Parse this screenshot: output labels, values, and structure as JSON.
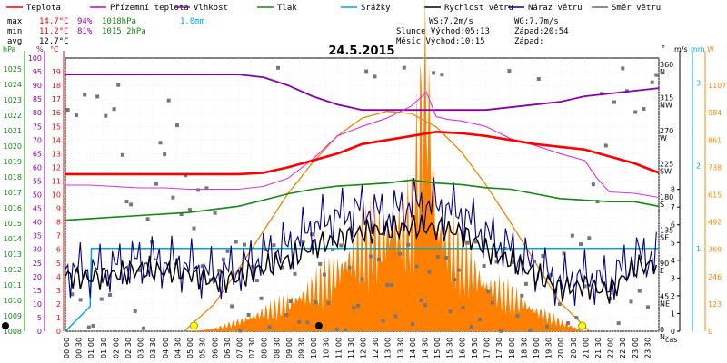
{
  "chart_data": {
    "type": "line",
    "title": "24.5.2015",
    "legend": [
      {
        "name": "Teplota",
        "color": "#ff0000"
      },
      {
        "name": "Přízemní teplota",
        "color": "#cc00cc"
      },
      {
        "name": "Vlhkost",
        "color": "#8800aa"
      },
      {
        "name": "Tlak",
        "color": "#118811"
      },
      {
        "name": "Srážky",
        "color": "#00aacc"
      },
      {
        "name": "Rychlost větru",
        "color": "#000000"
      },
      {
        "name": "Náraz větru",
        "color": "#000088"
      },
      {
        "name": "Směr větru",
        "color": "#666666"
      }
    ],
    "stats": {
      "max_label": "max",
      "max_t": "14.7°C",
      "max_h": "94%",
      "max_p": "1018hPa",
      "max_rain": "1.0mm",
      "min_label": "min",
      "min_t": "11.2°C",
      "min_h": "81%",
      "min_p": "1015.2hPa",
      "avg_label": "avg",
      "avg_t": "12.7°C",
      "ws": "WS:7.2m/s",
      "wg": "WG:7.7m/s",
      "sun_rise": "Slunce Východ:05:13",
      "sun_set": "Západ:20:54",
      "moon_rise": "Měsíc  Východ:10:15",
      "moon_set": "Západ:"
    },
    "axes": {
      "hpa_unit": "hPa",
      "pct_unit": "%",
      "c_unit": "°C",
      "dir_unit": "°",
      "ms_unit": "m/s",
      "mm_unit": "mm",
      "w_unit": "W",
      "x_label": "čas",
      "hpa_ticks": [
        "1025",
        "1024",
        "1023",
        "1022",
        "1021",
        "1020",
        "1019",
        "1018",
        "1017",
        "1016",
        "1015",
        "1014",
        "1013",
        "1012",
        "1011",
        "1010",
        "1009",
        "1008"
      ],
      "pct_ticks": [
        "100",
        "95",
        "90",
        "85",
        "80",
        "75",
        "70",
        "65",
        "60",
        "55",
        "50",
        "45",
        "40",
        "35",
        "30",
        "25",
        "20",
        "15",
        "10",
        "5",
        "0"
      ],
      "c_ticks": [
        "19",
        "18",
        "17",
        "16",
        "15",
        "14",
        "13",
        "12",
        "11",
        "10",
        "9",
        "8",
        "7",
        "6",
        "5",
        "4",
        "3",
        "2",
        "1",
        "0"
      ],
      "dir_ticks": [
        {
          "deg": "360",
          "lab": "N",
          "v": 360
        },
        {
          "deg": "315",
          "lab": "NW",
          "v": 315
        },
        {
          "deg": "270",
          "lab": "W",
          "v": 270
        },
        {
          "deg": "225",
          "lab": "SW",
          "v": 225
        },
        {
          "deg": "180",
          "lab": "S",
          "v": 180
        },
        {
          "deg": "135",
          "lab": "SE",
          "v": 135
        },
        {
          "deg": "90",
          "lab": "E",
          "v": 90
        },
        {
          "deg": "45",
          "lab": "NE",
          "v": 45
        },
        {
          "deg": "0",
          "lab": "N",
          "v": 0
        }
      ],
      "ms_ticks": [
        "8",
        "7",
        "6",
        "5",
        "4",
        "3",
        "2",
        "1",
        "0"
      ],
      "mm_ticks": [
        "3",
        "2",
        "1"
      ],
      "w_ticks": [
        "1107",
        "984",
        "861",
        "738",
        "615",
        "492",
        "369",
        "246",
        "123",
        "0"
      ],
      "time_ticks": [
        "00:00",
        "00:30",
        "01:00",
        "01:30",
        "02:00",
        "02:30",
        "03:00",
        "03:30",
        "04:00",
        "04:30",
        "05:00",
        "05:30",
        "06:00",
        "06:30",
        "07:00",
        "07:30",
        "08:00",
        "08:30",
        "09:00",
        "09:30",
        "10:00",
        "10:30",
        "11:00",
        "11:30",
        "12:00",
        "12:30",
        "13:00",
        "13:30",
        "14:00",
        "14:30",
        "15:00",
        "15:30",
        "16:00",
        "16:30",
        "17:00",
        "17:30",
        "18:00",
        "18:30",
        "19:00",
        "19:30",
        "20:00",
        "20:30",
        "21:00",
        "21:30",
        "22:00",
        "22:30",
        "23:00",
        "23:30"
      ]
    },
    "series": {
      "temperature": {
        "x": [
          0,
          1,
          2,
          3,
          4,
          5,
          6,
          7,
          8,
          9,
          10,
          11,
          12,
          13,
          14,
          15,
          16,
          17,
          18,
          19,
          20,
          21,
          22,
          23,
          24
        ],
        "y": [
          11.5,
          11.5,
          11.5,
          11.5,
          11.5,
          11.5,
          11.5,
          11.5,
          11.6,
          12.0,
          12.5,
          13.0,
          13.7,
          14.0,
          14.3,
          14.6,
          14.5,
          14.3,
          14.0,
          13.7,
          13.5,
          13.3,
          12.8,
          12.3,
          11.6
        ]
      },
      "ground_temp": {
        "x": [
          0,
          1,
          2,
          3,
          4,
          5,
          6,
          7,
          8,
          9,
          10,
          11,
          12,
          13,
          14,
          14.6,
          15,
          15.5,
          16,
          17,
          18,
          19,
          20,
          21,
          21.5,
          22,
          23,
          24
        ],
        "y": [
          10.7,
          10.7,
          10.6,
          10.5,
          10.5,
          10.4,
          10.4,
          10.4,
          10.6,
          11.2,
          12.6,
          14.3,
          15.0,
          15.6,
          16.5,
          17.5,
          15.7,
          15.5,
          15.4,
          15.0,
          14.1,
          13.6,
          13.0,
          12.5,
          11.2,
          10.2,
          10.1,
          9.8
        ]
      },
      "humidity": {
        "x": [
          0,
          1,
          2,
          3,
          4,
          5,
          6,
          7,
          8,
          9,
          10,
          11,
          12,
          13,
          14,
          15,
          16,
          17,
          18,
          19,
          20,
          21,
          22,
          23,
          24
        ],
        "y": [
          94,
          94,
          94,
          94,
          94,
          94,
          94,
          94,
          93,
          90,
          86,
          83,
          81,
          81,
          81,
          81,
          81,
          81,
          82,
          83,
          84,
          86,
          87,
          88,
          89
        ]
      },
      "pressure": {
        "x": [
          0,
          1,
          2,
          3,
          4,
          5,
          6,
          7,
          8,
          9,
          10,
          11,
          12,
          13,
          14,
          15,
          16,
          17,
          18,
          19,
          20,
          21,
          22,
          23,
          24
        ],
        "y": [
          1015.2,
          1015.3,
          1015.4,
          1015.5,
          1015.6,
          1015.7,
          1015.9,
          1016.1,
          1016.5,
          1016.9,
          1017.2,
          1017.4,
          1017.5,
          1017.6,
          1017.8,
          1017.6,
          1017.5,
          1017.3,
          1017.2,
          1016.9,
          1016.6,
          1016.5,
          1016.4,
          1016.4,
          1016.1
        ]
      },
      "rain_total_mm": {
        "x": [
          0,
          1.0,
          1.05,
          24
        ],
        "y": [
          0,
          0.3,
          1.0,
          1.0
        ]
      },
      "wind_speed_ms": {
        "x": [
          0,
          1,
          2,
          3,
          4,
          5,
          6,
          7,
          8,
          9,
          10,
          11,
          12,
          13,
          14,
          15,
          16,
          17,
          18,
          19,
          20,
          21,
          22,
          23,
          24
        ],
        "y": [
          3.1,
          3.0,
          3.2,
          3.5,
          3.4,
          3.3,
          2.8,
          3.0,
          3.6,
          4.0,
          4.8,
          5.2,
          5.6,
          5.7,
          5.9,
          5.8,
          5.6,
          4.6,
          4.0,
          3.2,
          2.4,
          2.6,
          2.2,
          3.6,
          3.8
        ]
      },
      "wind_gust_ms": {
        "x": [
          0,
          1,
          2,
          3,
          4,
          5,
          6,
          7,
          8,
          9,
          10,
          11,
          12,
          13,
          14,
          15,
          16,
          17,
          18,
          19,
          20,
          21,
          22,
          23,
          24
        ],
        "y": [
          3.5,
          3.4,
          3.6,
          4.0,
          3.9,
          3.7,
          3.2,
          3.5,
          4.3,
          4.8,
          5.9,
          6.5,
          6.9,
          6.5,
          7.2,
          7.1,
          6.7,
          5.4,
          4.6,
          3.6,
          2.8,
          3.1,
          2.8,
          4.2,
          4.3
        ]
      },
      "solar_W": {
        "x": [
          5,
          6,
          7,
          8,
          9,
          10,
          11,
          12,
          13,
          14,
          14.6,
          15,
          16,
          17,
          18,
          19,
          20,
          21
        ],
        "y": [
          0,
          10,
          40,
          80,
          120,
          180,
          260,
          380,
          420,
          480,
          1107,
          450,
          320,
          200,
          150,
          90,
          40,
          0
        ]
      },
      "clear_sky_W": {
        "x": [
          4.8,
          6,
          7,
          8,
          9,
          10,
          11,
          12,
          13,
          14,
          15,
          16,
          17,
          18,
          19,
          20,
          21.2
        ],
        "y": [
          0,
          120,
          280,
          450,
          620,
          760,
          880,
          960,
          990,
          980,
          920,
          810,
          660,
          490,
          310,
          130,
          0
        ]
      }
    },
    "wind_dir_sample": {
      "x": [
        0,
        1,
        2,
        3,
        4,
        5,
        6,
        7,
        8,
        9,
        10,
        11,
        12,
        13,
        14,
        15,
        16,
        17,
        18,
        19,
        20,
        21,
        22,
        23
      ],
      "deg": [
        350,
        355,
        350,
        20,
        280,
        170,
        120,
        60,
        70,
        40,
        80,
        60,
        40,
        50,
        60,
        40,
        70,
        60,
        50,
        40,
        60,
        80,
        350,
        355
      ]
    },
    "markers": {
      "moonrise_hour": 10.25,
      "moonset_hour": 0,
      "sunrise_hour": 5.2,
      "sunset_hour": 20.9
    }
  }
}
